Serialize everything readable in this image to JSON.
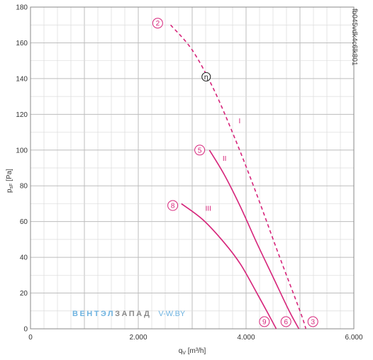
{
  "chart_data": {
    "type": "line",
    "xlabel": "q",
    "xlabel_sub": "V",
    "xlabel_unit": "[m³/h]",
    "ylabel": "p",
    "ylabel_sub": "sF",
    "ylabel_unit": "[Pa]",
    "xlim": [
      0,
      6000
    ],
    "ylim": [
      0,
      180
    ],
    "x_ticks": [
      0,
      2000,
      4000,
      6000
    ],
    "x_tick_labels": [
      "0",
      "2.000",
      "4.000",
      "6.000"
    ],
    "y_ticks": [
      0,
      20,
      40,
      60,
      80,
      100,
      120,
      140,
      160,
      180
    ],
    "y_tick_labels": [
      "0",
      "20",
      "40",
      "60",
      "80",
      "100",
      "120",
      "140",
      "160",
      "180"
    ],
    "grid": true,
    "series": [
      {
        "name": "I",
        "dashed": true,
        "color": "#d6247a",
        "x": [
          2600,
          3000,
          3400,
          3800,
          4200,
          4600,
          5000,
          5110
        ],
        "y": [
          170,
          156,
          134,
          106,
          75,
          42,
          10,
          0
        ]
      },
      {
        "name": "II",
        "dashed": false,
        "color": "#d6247a",
        "x": [
          3320,
          3600,
          3900,
          4200,
          4500,
          4800,
          4980
        ],
        "y": [
          100,
          86,
          68,
          48,
          29,
          10,
          0
        ]
      },
      {
        "name": "III",
        "dashed": false,
        "color": "#d6247a",
        "x": [
          2800,
          3200,
          3600,
          3900,
          4200,
          4400,
          4560
        ],
        "y": [
          70,
          61,
          48,
          36,
          20,
          9,
          0
        ]
      }
    ],
    "point_markers": [
      {
        "label": "2",
        "x": 2360,
        "y": 171
      },
      {
        "label": "5",
        "x": 3140,
        "y": 100
      },
      {
        "label": "8",
        "x": 2640,
        "y": 69
      },
      {
        "label": "9",
        "x": 4340,
        "y": 4
      },
      {
        "label": "6",
        "x": 4740,
        "y": 4
      },
      {
        "label": "3",
        "x": 5240,
        "y": 4
      }
    ],
    "curve_labels": [
      {
        "label": "I",
        "x": 3880,
        "y": 115
      },
      {
        "label": "II",
        "x": 3600,
        "y": 94
      },
      {
        "label": "III",
        "x": 3300,
        "y": 66
      }
    ],
    "eta_marker": {
      "label": "η",
      "x": 3260,
      "y": 141
    }
  },
  "figure_code": "fb045vdk4c6lk801",
  "watermark": {
    "part1": "ВЕНТЭЛ",
    "part2": "ЗАПАД",
    "part3": "V-W.BY",
    "color1": "#6fb3e0",
    "color2": "#8a8a8a",
    "color3": "#6fb3e0"
  }
}
